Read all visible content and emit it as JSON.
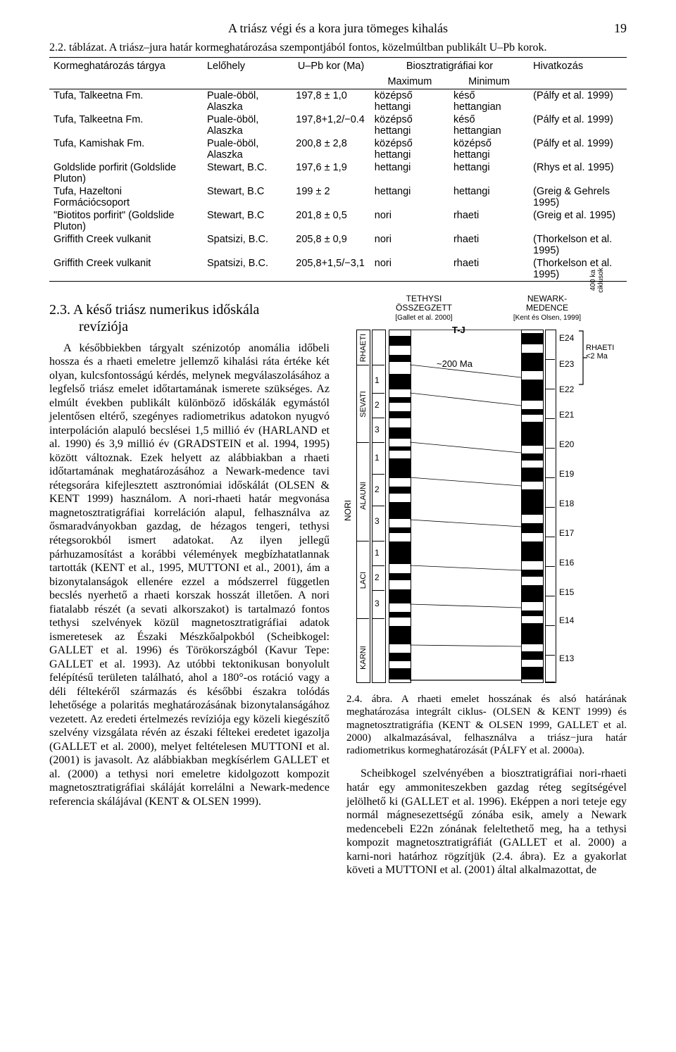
{
  "page": {
    "running_head": "A triász végi és a kora jura tömeges kihalás",
    "number": "19"
  },
  "table22": {
    "caption": "2.2. táblázat. A triász–jura határ kormeghatározása szempontjából fontos, közelmúltban publikált U–Pb korok.",
    "headers": {
      "target": "Kormeghatározás tárgya",
      "loc": "Lelőhely",
      "age": "U–Pb kor (Ma)",
      "bio": "Biosztratigráfiai kor",
      "max": "Maximum",
      "min": "Minimum",
      "ref": "Hivatkozás"
    },
    "rows": [
      {
        "t": "Tufa, Talkeetna Fm.",
        "l": "Puale-öböl, Alaszka",
        "a": "197,8 ± 1,0",
        "mx": "középső hettangi",
        "mn": "késő hettangian",
        "r": "(Pálfy et al. 1999)"
      },
      {
        "t": "Tufa, Talkeetna Fm.",
        "l": "Puale-öböl, Alaszka",
        "a": "197,8+1,2/−0.4",
        "mx": "középső hettangi",
        "mn": "késő hettangian",
        "r": "(Pálfy et al. 1999)"
      },
      {
        "t": "Tufa, Kamishak Fm.",
        "l": "Puale-öböl, Alaszka",
        "a": "200,8 ± 2,8",
        "mx": "középső hettangi",
        "mn": "középső hettangi",
        "r": "(Pálfy et al. 1999)"
      },
      {
        "t": "Goldslide porfirit (Goldslide Pluton)",
        "l": "Stewart, B.C.",
        "a": "197,6 ± 1,9",
        "mx": "hettangi",
        "mn": "hettangi",
        "r": "(Rhys et al. 1995)"
      },
      {
        "t": "Tufa, Hazeltoni Formációcsoport",
        "l": "Stewart, B.C",
        "a": "199 ± 2",
        "mx": "hettangi",
        "mn": "hettangi",
        "r": "(Greig & Gehrels 1995)"
      },
      {
        "t": "\"Biotitos porfirit\" (Goldslide Pluton)",
        "l": "Stewart, B.C",
        "a": "201,8 ± 0,5",
        "mx": "nori",
        "mn": "rhaeti",
        "r": "(Greig et al. 1995)"
      },
      {
        "t": "Griffith Creek vulkanit",
        "l": "Spatsizi, B.C.",
        "a": "205,8 ± 0,9",
        "mx": "nori",
        "mn": "rhaeti",
        "r": "(Thorkelson et al. 1995)"
      },
      {
        "t": "Griffith Creek vulkanit",
        "l": "Spatsizi, B.C.",
        "a": "205,8+1,5/−3,1",
        "mx": "nori",
        "mn": "rhaeti",
        "r": "(Thorkelson et al. 1995)"
      }
    ]
  },
  "section": {
    "num": "2.3.",
    "title_line1": "A késő triász numerikus időskála",
    "title_line2": "revíziója"
  },
  "body_left": "A későbbiekben tárgyalt szénizotóp anomália időbeli hossza és a rhaeti emeletre jellemző kihalási ráta értéke két olyan, kulcsfontosságú kérdés, melynek megválaszolásához a legfelső triász emelet időtartamának ismerete szükséges. Az elmúlt években publikált különböző időskálák egymástól jelentősen eltérő, szegényes radiometrikus adatokon nyugvó interpoláción alapuló becslései 1,5 millió év (HARLAND et al. 1990) és 3,9 millió év (GRADSTEIN et al. 1994, 1995) között változnak. Ezek helyett az alábbiakban a rhaeti időtartamának meghatározásához a Newark-medence tavi rétegsorára kifejlesztett asztronómiai időskálát (OLSEN & KENT 1999) használom. A nori-rhaeti határ megvonása magnetosztratigráfiai korreláción alapul, felhasználva az ősmaradványokban gazdag, de hézagos tengeri, tethysi rétegsorokból ismert adatokat. Az ilyen jellegű párhuzamosítást a korábbi vélemények megbízhatatlannak tartották (KENT et al., 1995, MUTTONI et al., 2001), ám a bizonytalanságok ellenére ezzel a módszerrel független becslés nyerhető a rhaeti korszak hosszát illetően. A nori fiatalabb részét (a sevati alkorszakot) is tartalmazó fontos tethysi szelvények közül magnetosztratigráfiai adatok ismeretesek az Északi Mészkőalpokból (Scheibkogel: GALLET et al. 1996) és Törökországból (Kavur Tepe: GALLET et al. 1993). Az utóbbi tektonikusan bonyolult felépítésű területen található, ahol a 180°-os rotáció vagy a déli féltekéről származás és későbbi északra tolódás lehetősége a polaritás meghatározásának bizonytalanságához vezetett. Az eredeti értelmezés revíziója egy közeli kiegészítő szelvény vizsgálata révén az északi féltekei eredetet igazolja (GALLET et al. 2000), melyet feltételesen MUTTONI et al. (2001) is javasolt. Az alábbiakban megkísérlem GALLET et al. (2000) a tethysi nori emeletre kidolgozott kompozit magnetosztratigráfiai skáláját korrelálni a Newark-medence referencia skálájával (KENT & OLSEN 1999).",
  "fig24": {
    "left_title": "TETHYSI ÖSSZEGZETT",
    "left_sub": "[Gallet et al. 2000]",
    "right_title": "NEWARK-MEDENCE",
    "right_sub": "[Kent és Olsen, 1999]",
    "far_right": "400 ka ciklusok",
    "tj": "T-J",
    "approx200": "~200 Ma",
    "rhaeti_label": "RHAETI",
    "rhaeti_dur": "<2 Ma",
    "stages_left": [
      "RHAETI",
      "SEVATI",
      "ALAUNI",
      "LACI",
      "KARNI"
    ],
    "nori_label": "NORI",
    "scale_ticks": [
      "1",
      "2",
      "3",
      "1",
      "2",
      "3",
      "1",
      "2",
      "3"
    ],
    "e_labels": [
      "E24",
      "E23",
      "E22",
      "E21",
      "E20",
      "E19",
      "E18",
      "E17",
      "E16",
      "E15",
      "E14",
      "E13"
    ],
    "colors": {
      "band": "#000000",
      "bg": "#ffffff",
      "border": "#000000"
    }
  },
  "fig_caption": "2.4. ábra. A rhaeti emelet hosszának és alsó határának meghatározása integrált ciklus- (OLSEN & KENT 1999) és magnetosztratigráfia (KENT & OLSEN 1999, GALLET et al. 2000) alkalmazásával, felhasználva a triász−jura határ radiometrikus kormeghatározását (PÁLFY et al. 2000a).",
  "body_right": "Scheibkogel szelvényében a biosztratigráfiai nori-rhaeti határ egy ammoniteszekben gazdag réteg segítségével jelölhető ki (GALLET et al. 1996). Eképpen a nori teteje egy normál mágnesezettségű zónába esik, amely a Newark medencebeli E22n zónának feleltethető meg, ha a tethysi kompozit magnetosztratigráfiát (GALLET et al. 2000) a karni-nori határhoz rögzítjük (2.4. ábra). Ez a gyakorlat követi a MUTTONI et al. (2001) által alkalmazottat, de"
}
